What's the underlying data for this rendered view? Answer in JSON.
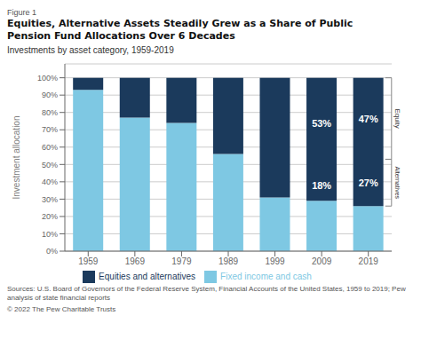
{
  "chart_data": {
    "type": "bar",
    "stacked": true,
    "figure_label": "Figure 1",
    "title": "Equities, Alternative Assets Steadily Grew as a Share of Public\nPension Fund Allocations Over 6 Decades",
    "subtitle": "Investments by asset category, 1959-2019",
    "ylabel": "Investment allocation",
    "categories": [
      "1959",
      "1969",
      "1979",
      "1989",
      "1999",
      "2009",
      "2019"
    ],
    "series": [
      {
        "name": "Fixed income and cash",
        "color": "#7EC8E3",
        "values": [
          93,
          77,
          74,
          56,
          31,
          29,
          26
        ]
      },
      {
        "name": "Equities and alternatives",
        "color": "#1B3A5C",
        "values": [
          7,
          23,
          26,
          44,
          69,
          71,
          74
        ]
      }
    ],
    "ylim": [
      0,
      108
    ],
    "yticks": [
      {
        "value": 0,
        "label": "0%"
      },
      {
        "value": 10,
        "label": "10%"
      },
      {
        "value": 20,
        "label": "20%"
      },
      {
        "value": 30,
        "label": "30%"
      },
      {
        "value": 40,
        "label": "40%"
      },
      {
        "value": 50,
        "label": "50%"
      },
      {
        "value": 60,
        "label": "60%"
      },
      {
        "value": 70,
        "label": "70%"
      },
      {
        "value": 80,
        "label": "80%"
      },
      {
        "value": 90,
        "label": "90%"
      },
      {
        "value": 100,
        "label": "100%"
      }
    ],
    "grid": true,
    "legend": "bottom",
    "annotations": [
      {
        "text": "53%",
        "category": "2009",
        "from": 47,
        "to": 100,
        "color": "#ffffff"
      },
      {
        "text": "18%",
        "category": "2009",
        "from": 29,
        "to": 47,
        "color": "#ffffff"
      },
      {
        "text": "47%",
        "category": "2019",
        "from": 53,
        "to": 100,
        "color": "#ffffff"
      },
      {
        "text": "27%",
        "category": "2019",
        "from": 26,
        "to": 53,
        "color": "#ffffff"
      }
    ],
    "brackets": [
      {
        "label": "Equity",
        "category": "2019",
        "from": 53,
        "to": 100,
        "color": "#888888"
      },
      {
        "label": "Alternatives",
        "category": "2019",
        "from": 26,
        "to": 53,
        "color": "#888888"
      }
    ],
    "source": "Sources: U.S. Board of Governors of the Federal Reserve System, Financial Accounts of the United States, 1959 to 2019; Pew\nanalysis of state financial reports",
    "copyright": "© 2022 The Pew Charitable Trusts"
  }
}
